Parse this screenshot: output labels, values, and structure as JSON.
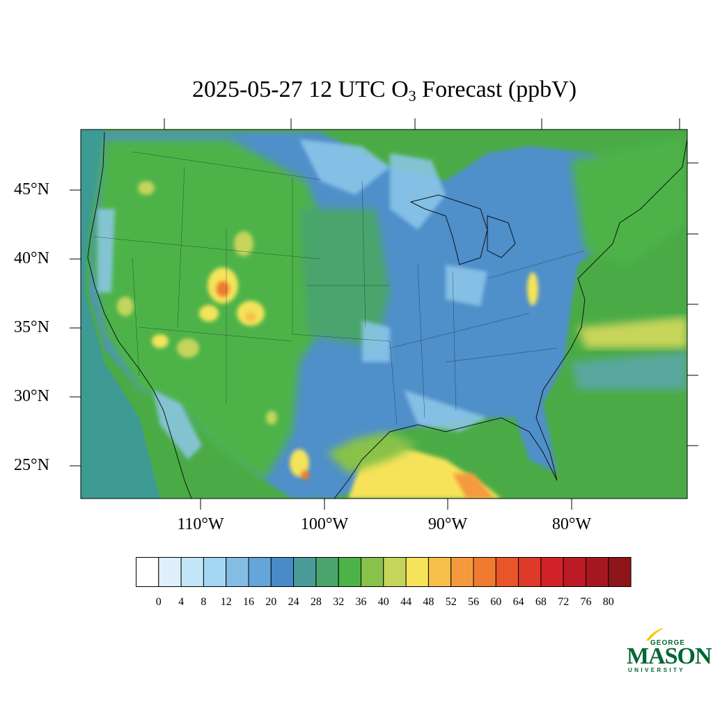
{
  "title": {
    "prefix": "2025-05-27 12 UTC O",
    "subscript": "3",
    "suffix": " Forecast (ppbV)"
  },
  "map": {
    "lat_labels": [
      "45°N",
      "40°N",
      "35°N",
      "30°N",
      "25°N"
    ],
    "lon_labels": [
      "110°W",
      "100°W",
      "90°W",
      "80°W"
    ],
    "field": "O3 forecast concentration",
    "colors": {
      "ocean_green": "#4aab46",
      "pacific_teal": "#3d9b93",
      "land_blue": "#4f8fca",
      "light_blue": "#8ec8ea",
      "hotspot_yellow": "#f3e45a",
      "hotspot_orange": "#f7a040",
      "gulf_yellow": "#f7e35a",
      "gulf_olive": "#c7d55a"
    }
  },
  "colorbar": {
    "labels": [
      "0",
      "4",
      "8",
      "12",
      "16",
      "20",
      "24",
      "28",
      "32",
      "36",
      "40",
      "44",
      "48",
      "52",
      "56",
      "60",
      "64",
      "68",
      "72",
      "76",
      "80"
    ],
    "colors": [
      "#ffffff",
      "#dff0fa",
      "#c2e6f7",
      "#a3d7f3",
      "#84bde4",
      "#64a5da",
      "#478bc8",
      "#4a9a9a",
      "#4aa56c",
      "#4db348",
      "#88c24a",
      "#c5d55b",
      "#f7e35a",
      "#f6bf48",
      "#f59a3c",
      "#f07a30",
      "#e9552b",
      "#df3a2a",
      "#d22129",
      "#bc1a25",
      "#a51820",
      "#8e1519"
    ]
  },
  "logo": {
    "line1": "GEORGE",
    "line2": "MASON",
    "line3": "UNIVERSITY"
  }
}
